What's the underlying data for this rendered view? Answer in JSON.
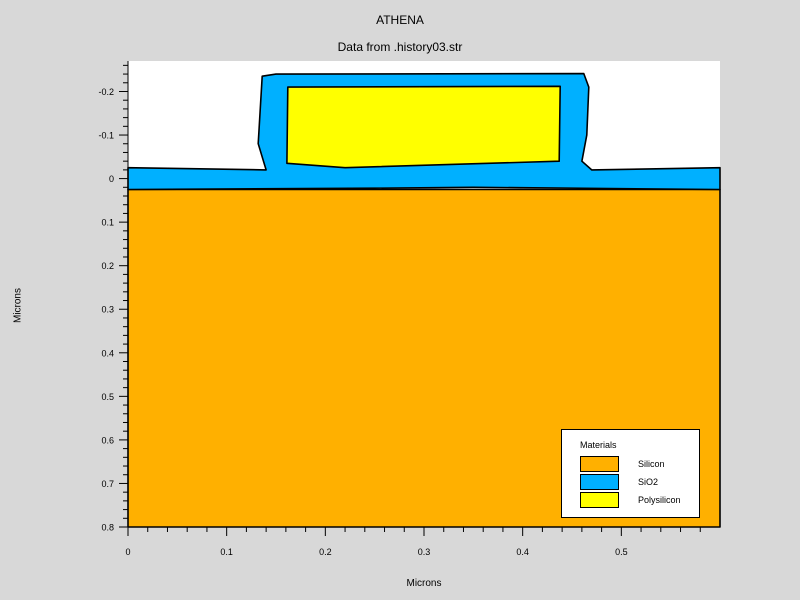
{
  "header": {
    "title": "ATHENA",
    "subtitle": "Data from .history03.str"
  },
  "chart_data": {
    "type": "cross-section",
    "xlabel": "Microns",
    "ylabel": "Microns",
    "xlim": [
      0,
      0.6
    ],
    "ylim": [
      -0.27,
      0.8
    ],
    "y_inverted": true,
    "xticks": [
      "0",
      "0.1",
      "0.2",
      "0.3",
      "0.4",
      "0.5"
    ],
    "yticks": [
      "-0.2",
      "-0.1",
      "0",
      "0.1",
      "0.2",
      "0.3",
      "0.4",
      "0.5",
      "0.6",
      "0.7",
      "0.8"
    ],
    "regions": [
      {
        "material": "Silicon",
        "color": "#ffb000",
        "polygon": [
          [
            0,
            0.025
          ],
          [
            0.6,
            0.025
          ],
          [
            0.6,
            0.8
          ],
          [
            0,
            0.8
          ]
        ]
      },
      {
        "material": "SiO2",
        "color": "#00b0ff",
        "polygon": [
          [
            0,
            -0.025
          ],
          [
            0.14,
            -0.02
          ],
          [
            0.132,
            -0.08
          ],
          [
            0.136,
            -0.235
          ],
          [
            0.15,
            -0.24
          ],
          [
            0.462,
            -0.241
          ],
          [
            0.467,
            -0.21
          ],
          [
            0.465,
            -0.1
          ],
          [
            0.46,
            -0.04
          ],
          [
            0.47,
            -0.02
          ],
          [
            0.6,
            -0.025
          ],
          [
            0.6,
            0.025
          ],
          [
            0.35,
            0.02
          ],
          [
            0.25,
            0.022
          ],
          [
            0,
            0.025
          ]
        ]
      },
      {
        "material": "Polysilicon",
        "color": "#ffff00",
        "polygon": [
          [
            0.162,
            -0.21
          ],
          [
            0.438,
            -0.212
          ],
          [
            0.437,
            -0.04
          ],
          [
            0.22,
            -0.025
          ],
          [
            0.161,
            -0.035
          ]
        ]
      }
    ]
  },
  "legend": {
    "title": "Materials",
    "items": [
      {
        "label": "Silicon",
        "color": "#ffb000"
      },
      {
        "label": "SiO2",
        "color": "#00b0ff"
      },
      {
        "label": "Polysilicon",
        "color": "#ffff00"
      }
    ]
  }
}
